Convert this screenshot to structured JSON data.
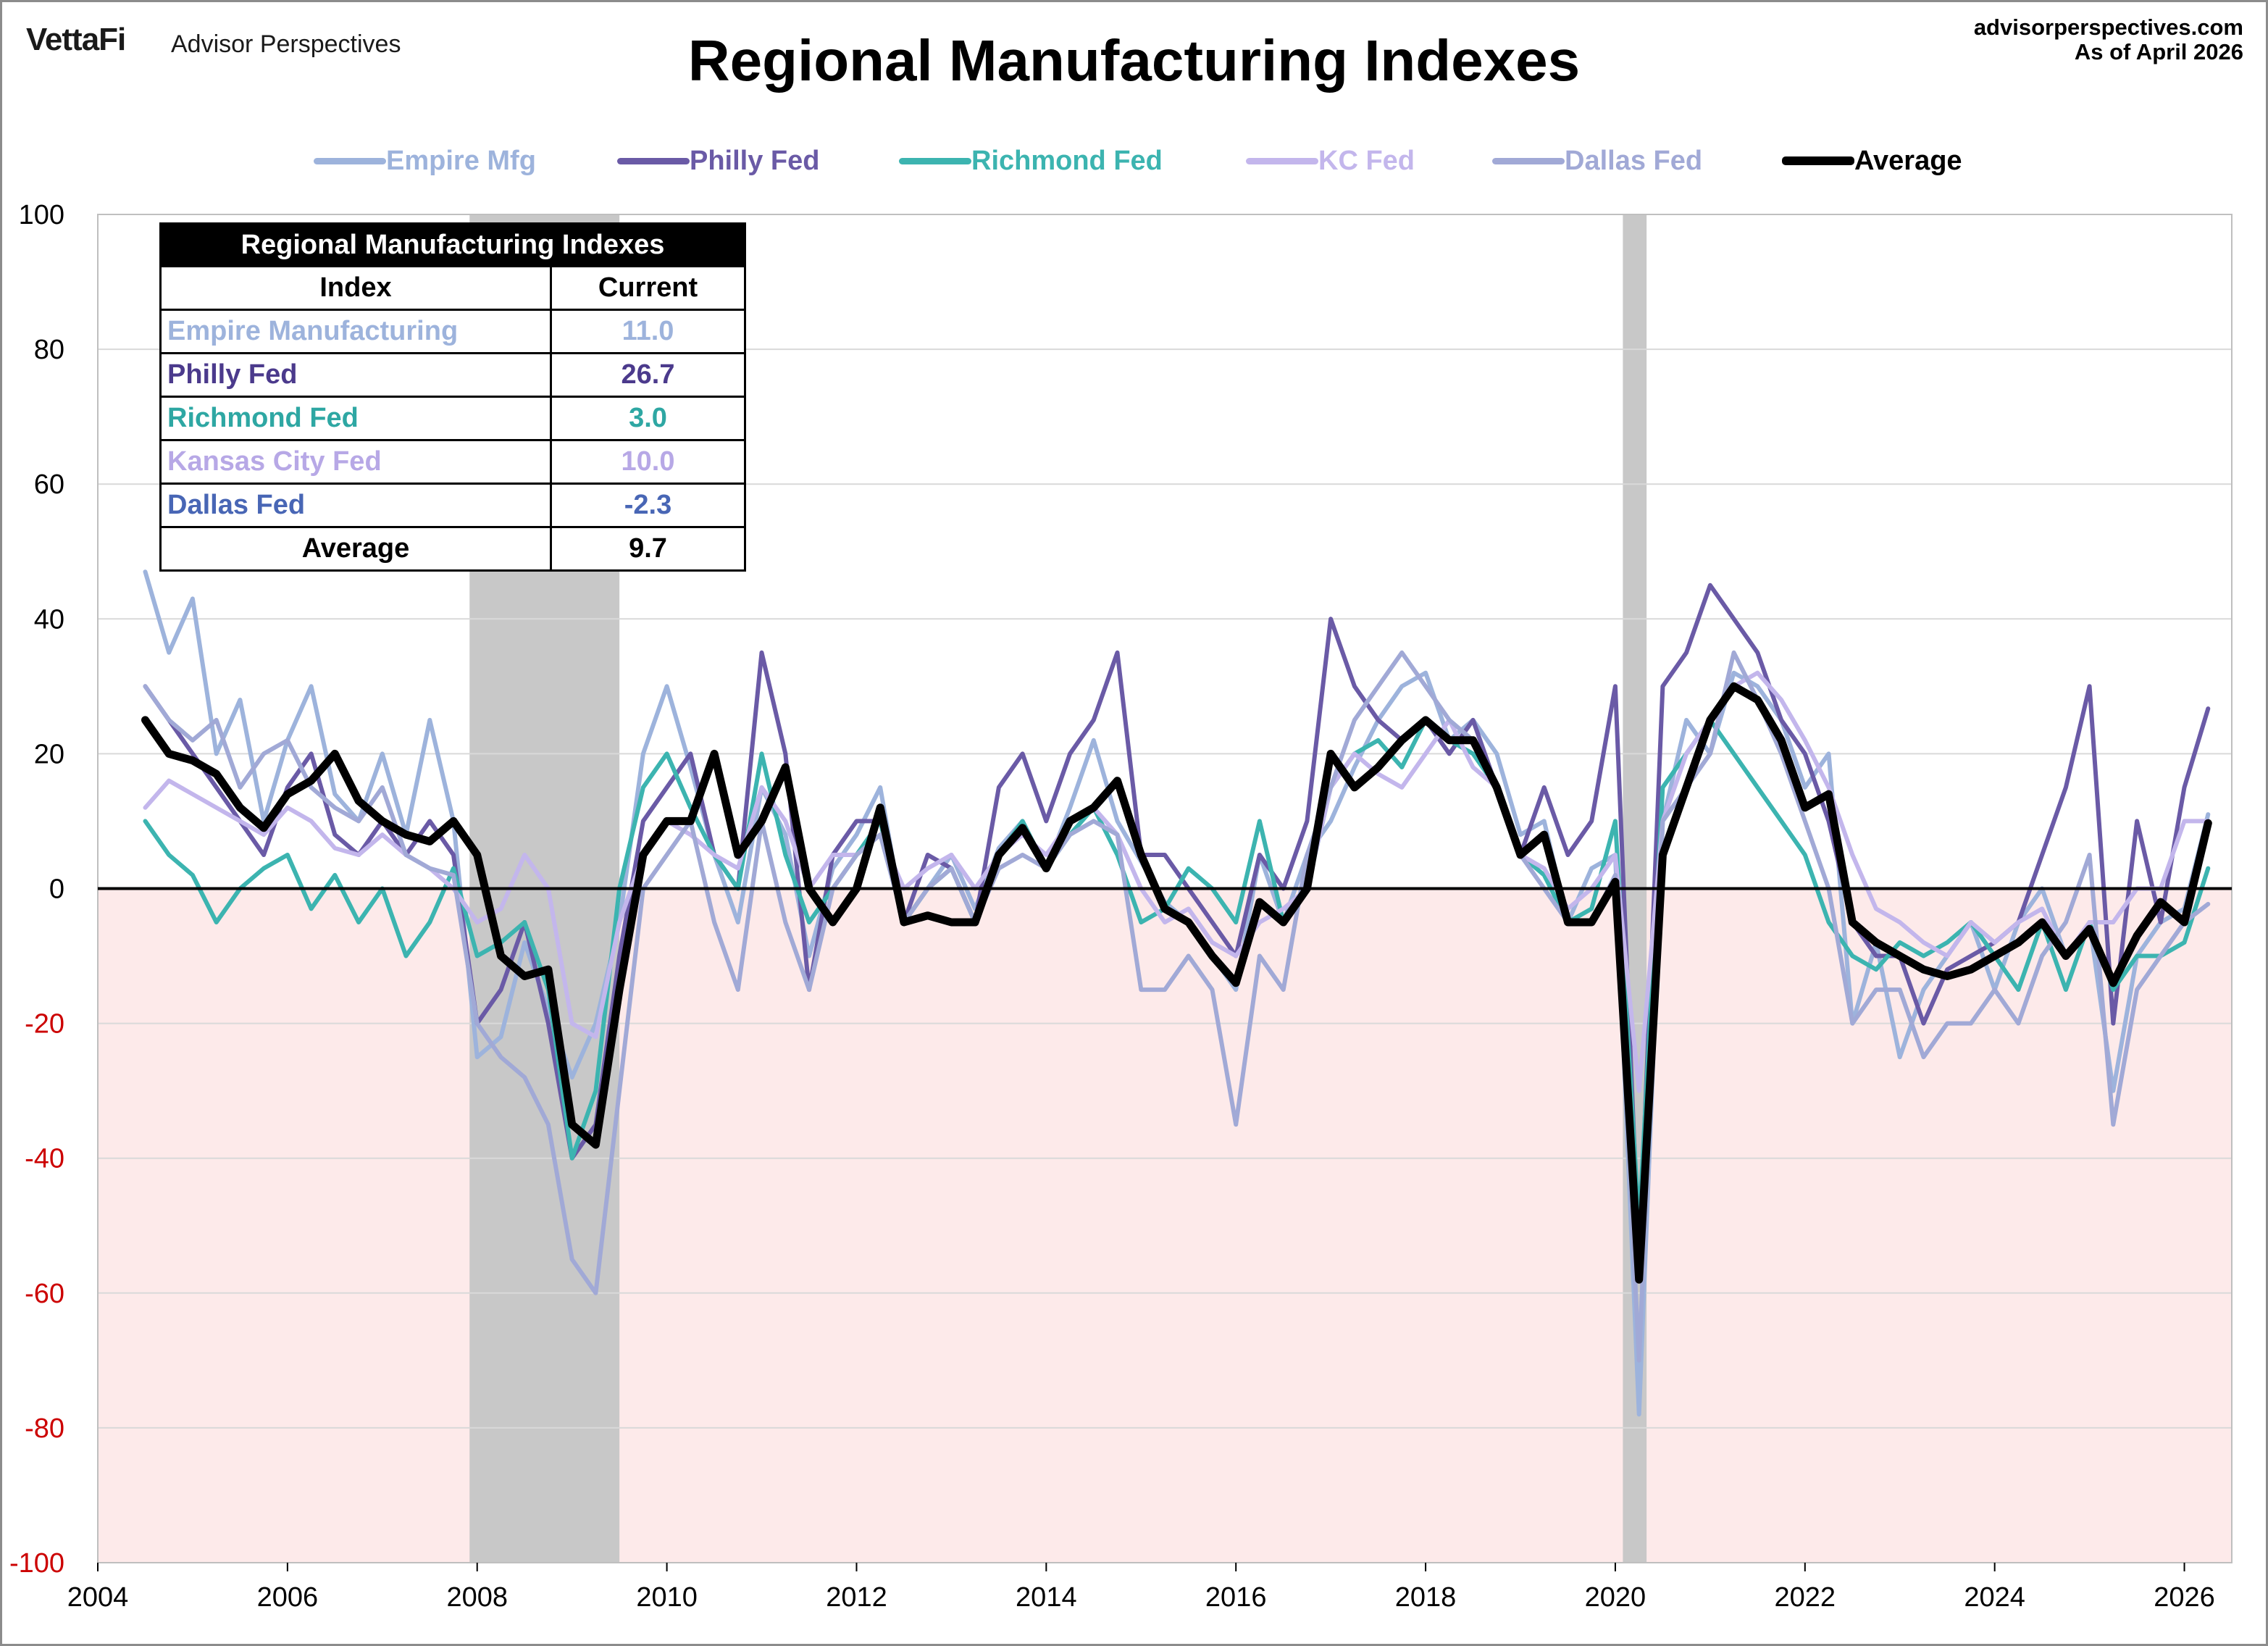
{
  "header": {
    "logo_text": "VettaFi",
    "brand": "Advisor Perspectives",
    "title": "Regional Manufacturing Indexes",
    "site": "advisorperspectives.com",
    "as_of": "As of April 2026"
  },
  "colors": {
    "empire": "#9db3dc",
    "philly": "#6a5aa6",
    "richmond": "#3cb4b0",
    "kc": "#c3b6ec",
    "dallas": "#a1a9d6",
    "average": "#000000",
    "recession": "#c8c8c8",
    "negative_area": "#fdeaea",
    "negative_tick": "#cc0000"
  },
  "legend": [
    "Empire Mfg",
    "Philly Fed",
    "Richmond Fed",
    "KC Fed",
    "Dallas Fed",
    "Average"
  ],
  "table": {
    "caption": "Regional Manufacturing Indexes",
    "col_index": "Index",
    "col_current": "Current",
    "rows": [
      {
        "name": "Empire Manufacturing",
        "value": "11.0",
        "color": "#9db3dc"
      },
      {
        "name": "Philly Fed",
        "value": "26.7",
        "color": "#4b3a8c"
      },
      {
        "name": "Richmond Fed",
        "value": "3.0",
        "color": "#2ea7a3"
      },
      {
        "name": "Kansas City Fed",
        "value": "10.0",
        "color": "#b7a8e6"
      },
      {
        "name": "Dallas Fed",
        "value": "-2.3",
        "color": "#4866b5"
      },
      {
        "name": "Average",
        "value": "9.7",
        "color": "#000000"
      }
    ]
  },
  "chart_data": {
    "type": "line",
    "title": "Regional Manufacturing Indexes",
    "ylim": [
      -100,
      100
    ],
    "xlim": [
      2004,
      2026.5
    ],
    "y_ticks": [
      "100",
      "80",
      "60",
      "40",
      "20",
      "0",
      "-20",
      "-40",
      "-60",
      "-80",
      "-100"
    ],
    "x_ticks": [
      "2004",
      "2006",
      "2008",
      "2010",
      "2012",
      "2014",
      "2016",
      "2018",
      "2020",
      "2022",
      "2024",
      "2026"
    ],
    "grid": "horizontal",
    "legend_position": "top",
    "recessions": [
      [
        2007.92,
        2009.5
      ],
      [
        2020.08,
        2020.33
      ]
    ],
    "series": [
      {
        "name": "Empire Mfg",
        "x": [
          2004.5,
          2004.75,
          2005.0,
          2005.25,
          2005.5,
          2005.75,
          2006.0,
          2006.25,
          2006.5,
          2006.75,
          2007.0,
          2007.25,
          2007.5,
          2007.75,
          2008.0,
          2008.25,
          2008.5,
          2008.75,
          2009.0,
          2009.25,
          2009.5,
          2009.75,
          2010.0,
          2010.25,
          2010.5,
          2010.75,
          2011.0,
          2011.25,
          2011.5,
          2011.75,
          2012.0,
          2012.25,
          2012.5,
          2012.75,
          2013.0,
          2013.25,
          2013.5,
          2013.75,
          2014.0,
          2014.25,
          2014.5,
          2014.75,
          2015.0,
          2015.25,
          2015.5,
          2015.75,
          2016.0,
          2016.25,
          2016.5,
          2016.75,
          2017.0,
          2017.25,
          2017.5,
          2017.75,
          2018.0,
          2018.25,
          2018.5,
          2018.75,
          2019.0,
          2019.25,
          2019.5,
          2019.75,
          2020.0,
          2020.25,
          2020.5,
          2020.75,
          2021.0,
          2021.25,
          2021.5,
          2021.75,
          2022.0,
          2022.25,
          2022.5,
          2022.75,
          2023.0,
          2023.25,
          2023.5,
          2023.75,
          2024.0,
          2024.25,
          2024.5,
          2024.75,
          2025.0,
          2025.25,
          2025.5,
          2025.75,
          2026.0,
          2026.25
        ],
        "values": [
          47,
          35,
          43,
          20,
          28,
          10,
          22,
          30,
          14,
          10,
          20,
          8,
          25,
          10,
          -25,
          -22,
          -8,
          -18,
          -28,
          -20,
          -5,
          20,
          30,
          18,
          5,
          -5,
          15,
          8,
          -10,
          3,
          8,
          15,
          -5,
          0,
          5,
          -3,
          6,
          10,
          3,
          12,
          22,
          10,
          4,
          -2,
          -5,
          -10,
          -15,
          5,
          -5,
          5,
          10,
          18,
          25,
          30,
          32,
          22,
          25,
          20,
          8,
          10,
          -5,
          3,
          5,
          -78,
          10,
          25,
          20,
          32,
          30,
          25,
          15,
          20,
          -20,
          -8,
          -25,
          -15,
          -10,
          -5,
          -15,
          -5,
          0,
          -10,
          -5,
          -30,
          -10,
          -5,
          -3,
          11
        ]
      },
      {
        "name": "Philly Fed",
        "x": [
          2004.5,
          2004.75,
          2005.0,
          2005.25,
          2005.5,
          2005.75,
          2006.0,
          2006.25,
          2006.5,
          2006.75,
          2007.0,
          2007.25,
          2007.5,
          2007.75,
          2008.0,
          2008.25,
          2008.5,
          2008.75,
          2009.0,
          2009.25,
          2009.5,
          2009.75,
          2010.0,
          2010.25,
          2010.5,
          2010.75,
          2011.0,
          2011.25,
          2011.5,
          2011.75,
          2012.0,
          2012.25,
          2012.5,
          2012.75,
          2013.0,
          2013.25,
          2013.5,
          2013.75,
          2014.0,
          2014.25,
          2014.5,
          2014.75,
          2015.0,
          2015.25,
          2015.5,
          2015.75,
          2016.0,
          2016.25,
          2016.5,
          2016.75,
          2017.0,
          2017.25,
          2017.5,
          2017.75,
          2018.0,
          2018.25,
          2018.5,
          2018.75,
          2019.0,
          2019.25,
          2019.5,
          2019.75,
          2020.0,
          2020.25,
          2020.5,
          2020.75,
          2021.0,
          2021.25,
          2021.5,
          2021.75,
          2022.0,
          2022.25,
          2022.5,
          2022.75,
          2023.0,
          2023.25,
          2023.5,
          2023.75,
          2024.0,
          2024.25,
          2024.5,
          2024.75,
          2025.0,
          2025.25,
          2025.5,
          2025.75,
          2026.0,
          2026.25
        ],
        "values": [
          30,
          25,
          20,
          15,
          10,
          5,
          15,
          20,
          8,
          5,
          10,
          5,
          10,
          5,
          -20,
          -15,
          -5,
          -20,
          -40,
          -35,
          -10,
          10,
          15,
          20,
          5,
          0,
          35,
          20,
          -15,
          5,
          10,
          10,
          -5,
          5,
          3,
          -5,
          15,
          20,
          10,
          20,
          25,
          35,
          5,
          5,
          0,
          -5,
          -10,
          5,
          0,
          10,
          40,
          30,
          25,
          22,
          25,
          20,
          25,
          15,
          5,
          15,
          5,
          10,
          30,
          -55,
          30,
          35,
          45,
          40,
          35,
          25,
          20,
          10,
          -5,
          -10,
          -10,
          -20,
          -12,
          -10,
          -8,
          -5,
          5,
          15,
          30,
          -20,
          10,
          -5,
          15,
          26.7
        ]
      },
      {
        "name": "Richmond Fed",
        "x": [
          2004.5,
          2004.75,
          2005.0,
          2005.25,
          2005.5,
          2005.75,
          2006.0,
          2006.25,
          2006.5,
          2006.75,
          2007.0,
          2007.25,
          2007.5,
          2007.75,
          2008.0,
          2008.25,
          2008.5,
          2008.75,
          2009.0,
          2009.25,
          2009.5,
          2009.75,
          2010.0,
          2010.25,
          2010.5,
          2010.75,
          2011.0,
          2011.25,
          2011.5,
          2011.75,
          2012.0,
          2012.25,
          2012.5,
          2012.75,
          2013.0,
          2013.25,
          2013.5,
          2013.75,
          2014.0,
          2014.25,
          2014.5,
          2014.75,
          2015.0,
          2015.25,
          2015.5,
          2015.75,
          2016.0,
          2016.25,
          2016.5,
          2016.75,
          2017.0,
          2017.25,
          2017.5,
          2017.75,
          2018.0,
          2018.25,
          2018.5,
          2018.75,
          2019.0,
          2019.25,
          2019.5,
          2019.75,
          2020.0,
          2020.25,
          2020.5,
          2020.75,
          2021.0,
          2021.25,
          2021.5,
          2021.75,
          2022.0,
          2022.25,
          2022.5,
          2022.75,
          2023.0,
          2023.25,
          2023.5,
          2023.75,
          2024.0,
          2024.25,
          2024.5,
          2024.75,
          2025.0,
          2025.25,
          2025.5,
          2025.75,
          2026.0,
          2026.25
        ],
        "values": [
          10,
          5,
          2,
          -5,
          0,
          3,
          5,
          -3,
          2,
          -5,
          0,
          -10,
          -5,
          3,
          -10,
          -8,
          -5,
          -15,
          -40,
          -30,
          0,
          15,
          20,
          12,
          5,
          0,
          20,
          5,
          -5,
          0,
          5,
          10,
          -5,
          0,
          3,
          -5,
          5,
          10,
          3,
          8,
          12,
          5,
          -5,
          -3,
          3,
          0,
          -5,
          10,
          -5,
          0,
          15,
          20,
          22,
          18,
          25,
          22,
          20,
          15,
          5,
          2,
          -5,
          -3,
          10,
          -50,
          15,
          20,
          25,
          20,
          15,
          10,
          5,
          -5,
          -10,
          -12,
          -8,
          -10,
          -8,
          -5,
          -10,
          -15,
          -5,
          -15,
          -5,
          -15,
          -10,
          -10,
          -8,
          3
        ]
      },
      {
        "name": "KC Fed",
        "x": [
          2004.5,
          2004.75,
          2005.0,
          2005.25,
          2005.5,
          2005.75,
          2006.0,
          2006.25,
          2006.5,
          2006.75,
          2007.0,
          2007.25,
          2007.5,
          2007.75,
          2008.0,
          2008.25,
          2008.5,
          2008.75,
          2009.0,
          2009.25,
          2009.5,
          2009.75,
          2010.0,
          2010.25,
          2010.5,
          2010.75,
          2011.0,
          2011.25,
          2011.5,
          2011.75,
          2012.0,
          2012.25,
          2012.5,
          2012.75,
          2013.0,
          2013.25,
          2013.5,
          2013.75,
          2014.0,
          2014.25,
          2014.5,
          2014.75,
          2015.0,
          2015.25,
          2015.5,
          2015.75,
          2016.0,
          2016.25,
          2016.5,
          2016.75,
          2017.0,
          2017.25,
          2017.5,
          2017.75,
          2018.0,
          2018.25,
          2018.5,
          2018.75,
          2019.0,
          2019.25,
          2019.5,
          2019.75,
          2020.0,
          2020.25,
          2020.5,
          2020.75,
          2021.0,
          2021.25,
          2021.5,
          2021.75,
          2022.0,
          2022.25,
          2022.5,
          2022.75,
          2023.0,
          2023.25,
          2023.5,
          2023.75,
          2024.0,
          2024.25,
          2024.5,
          2024.75,
          2025.0,
          2025.25,
          2025.5,
          2025.75,
          2026.0,
          2026.25
        ],
        "values": [
          12,
          16,
          14,
          12,
          10,
          8,
          12,
          10,
          6,
          5,
          8,
          5,
          3,
          0,
          -5,
          -3,
          5,
          0,
          -20,
          -22,
          -5,
          5,
          10,
          8,
          5,
          3,
          15,
          10,
          0,
          5,
          5,
          8,
          0,
          3,
          5,
          0,
          5,
          8,
          5,
          10,
          12,
          8,
          0,
          -5,
          -3,
          -8,
          -10,
          -5,
          -3,
          0,
          15,
          20,
          17,
          15,
          20,
          25,
          18,
          15,
          5,
          3,
          -3,
          0,
          5,
          -30,
          10,
          20,
          25,
          30,
          32,
          28,
          22,
          15,
          5,
          -3,
          -5,
          -8,
          -10,
          -5,
          -8,
          -5,
          -3,
          -10,
          -5,
          -5,
          0,
          0,
          10,
          10
        ]
      },
      {
        "name": "Dallas Fed",
        "x": [
          2004.5,
          2004.75,
          2005.0,
          2005.25,
          2005.5,
          2005.75,
          2006.0,
          2006.25,
          2006.5,
          2006.75,
          2007.0,
          2007.25,
          2007.5,
          2007.75,
          2008.0,
          2008.25,
          2008.5,
          2008.75,
          2009.0,
          2009.25,
          2009.5,
          2009.75,
          2010.0,
          2010.25,
          2010.5,
          2010.75,
          2011.0,
          2011.25,
          2011.5,
          2011.75,
          2012.0,
          2012.25,
          2012.5,
          2012.75,
          2013.0,
          2013.25,
          2013.5,
          2013.75,
          2014.0,
          2014.25,
          2014.5,
          2014.75,
          2015.0,
          2015.25,
          2015.5,
          2015.75,
          2016.0,
          2016.25,
          2016.5,
          2016.75,
          2017.0,
          2017.25,
          2017.5,
          2017.75,
          2018.0,
          2018.25,
          2018.5,
          2018.75,
          2019.0,
          2019.25,
          2019.5,
          2019.75,
          2020.0,
          2020.25,
          2020.5,
          2020.75,
          2021.0,
          2021.25,
          2021.5,
          2021.75,
          2022.0,
          2022.25,
          2022.5,
          2022.75,
          2023.0,
          2023.25,
          2023.5,
          2023.75,
          2024.0,
          2024.25,
          2024.5,
          2024.75,
          2025.0,
          2025.25,
          2025.5,
          2025.75,
          2026.0,
          2026.25
        ],
        "values": [
          30,
          25,
          22,
          25,
          15,
          20,
          22,
          15,
          12,
          10,
          15,
          5,
          3,
          2,
          -20,
          -25,
          -28,
          -35,
          -55,
          -60,
          -30,
          0,
          5,
          10,
          -5,
          -15,
          10,
          -5,
          -15,
          0,
          5,
          8,
          -5,
          0,
          3,
          -5,
          3,
          5,
          3,
          8,
          10,
          8,
          -15,
          -15,
          -10,
          -15,
          -35,
          -10,
          -15,
          5,
          15,
          25,
          30,
          35,
          30,
          25,
          22,
          15,
          5,
          0,
          -5,
          -5,
          2,
          -70,
          10,
          15,
          20,
          35,
          28,
          20,
          10,
          0,
          -20,
          -15,
          -15,
          -25,
          -20,
          -20,
          -15,
          -20,
          -10,
          -5,
          5,
          -35,
          -15,
          -10,
          -5,
          -2.3
        ]
      },
      {
        "name": "Average",
        "x": [
          2004.5,
          2004.75,
          2005.0,
          2005.25,
          2005.5,
          2005.75,
          2006.0,
          2006.25,
          2006.5,
          2006.75,
          2007.0,
          2007.25,
          2007.5,
          2007.75,
          2008.0,
          2008.25,
          2008.5,
          2008.75,
          2009.0,
          2009.25,
          2009.5,
          2009.75,
          2010.0,
          2010.25,
          2010.5,
          2010.75,
          2011.0,
          2011.25,
          2011.5,
          2011.75,
          2012.0,
          2012.25,
          2012.5,
          2012.75,
          2013.0,
          2013.25,
          2013.5,
          2013.75,
          2014.0,
          2014.25,
          2014.5,
          2014.75,
          2015.0,
          2015.25,
          2015.5,
          2015.75,
          2016.0,
          2016.25,
          2016.5,
          2016.75,
          2017.0,
          2017.25,
          2017.5,
          2017.75,
          2018.0,
          2018.25,
          2018.5,
          2018.75,
          2019.0,
          2019.25,
          2019.5,
          2019.75,
          2020.0,
          2020.25,
          2020.5,
          2020.75,
          2021.0,
          2021.25,
          2021.5,
          2021.75,
          2022.0,
          2022.25,
          2022.5,
          2022.75,
          2023.0,
          2023.25,
          2023.5,
          2023.75,
          2024.0,
          2024.25,
          2024.5,
          2024.75,
          2025.0,
          2025.25,
          2025.5,
          2025.75,
          2026.0,
          2026.25
        ],
        "values": [
          25,
          20,
          19,
          17,
          12,
          9,
          14,
          16,
          20,
          13,
          10,
          8,
          7,
          10,
          5,
          -10,
          -13,
          -12,
          -35,
          -38,
          -15,
          5,
          10,
          10,
          20,
          5,
          10,
          18,
          0,
          -5,
          0,
          12,
          -5,
          -4,
          -5,
          -5,
          5,
          9,
          3,
          10,
          12,
          16,
          5,
          -3,
          -5,
          -10,
          -14,
          -2,
          -5,
          0,
          20,
          15,
          18,
          22,
          25,
          22,
          22,
          15,
          5,
          8,
          -5,
          -5,
          1,
          -58,
          5,
          15,
          25,
          30,
          28,
          22,
          12,
          14,
          -5,
          -8,
          -10,
          -12,
          -13,
          -12,
          -10,
          -8,
          -5,
          -10,
          -6,
          -14,
          -7,
          -2,
          -5,
          9.7
        ]
      }
    ]
  }
}
